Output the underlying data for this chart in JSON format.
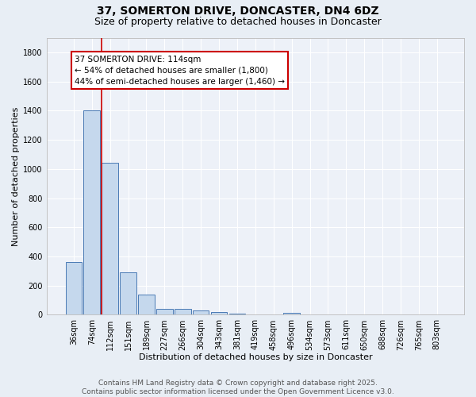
{
  "title_line1": "37, SOMERTON DRIVE, DONCASTER, DN4 6DZ",
  "title_line2": "Size of property relative to detached houses in Doncaster",
  "xlabel": "Distribution of detached houses by size in Doncaster",
  "ylabel": "Number of detached properties",
  "categories": [
    "36sqm",
    "74sqm",
    "112sqm",
    "151sqm",
    "189sqm",
    "227sqm",
    "266sqm",
    "304sqm",
    "343sqm",
    "381sqm",
    "419sqm",
    "458sqm",
    "496sqm",
    "534sqm",
    "573sqm",
    "611sqm",
    "650sqm",
    "688sqm",
    "726sqm",
    "765sqm",
    "803sqm"
  ],
  "values": [
    360,
    1400,
    1040,
    290,
    140,
    43,
    43,
    30,
    17,
    10,
    0,
    0,
    12,
    0,
    0,
    0,
    0,
    0,
    0,
    0,
    0
  ],
  "bar_color": "#c5d8ed",
  "bar_edge_color": "#4a7ab5",
  "vline_color": "#cc0000",
  "annotation_text": "37 SOMERTON DRIVE: 114sqm\n← 54% of detached houses are smaller (1,800)\n44% of semi-detached houses are larger (1,460) →",
  "annotation_box_color": "#ffffff",
  "annotation_box_edge_color": "#cc0000",
  "ylim": [
    0,
    1900
  ],
  "yticks": [
    0,
    200,
    400,
    600,
    800,
    1000,
    1200,
    1400,
    1600,
    1800
  ],
  "background_color": "#e8eef5",
  "plot_background": "#edf1f8",
  "grid_color": "#ffffff",
  "footnote": "Contains HM Land Registry data © Crown copyright and database right 2025.\nContains public sector information licensed under the Open Government Licence v3.0.",
  "title_fontsize": 10,
  "subtitle_fontsize": 9,
  "axis_label_fontsize": 8,
  "tick_fontsize": 7,
  "annotation_fontsize": 7.5,
  "footnote_fontsize": 6.5
}
